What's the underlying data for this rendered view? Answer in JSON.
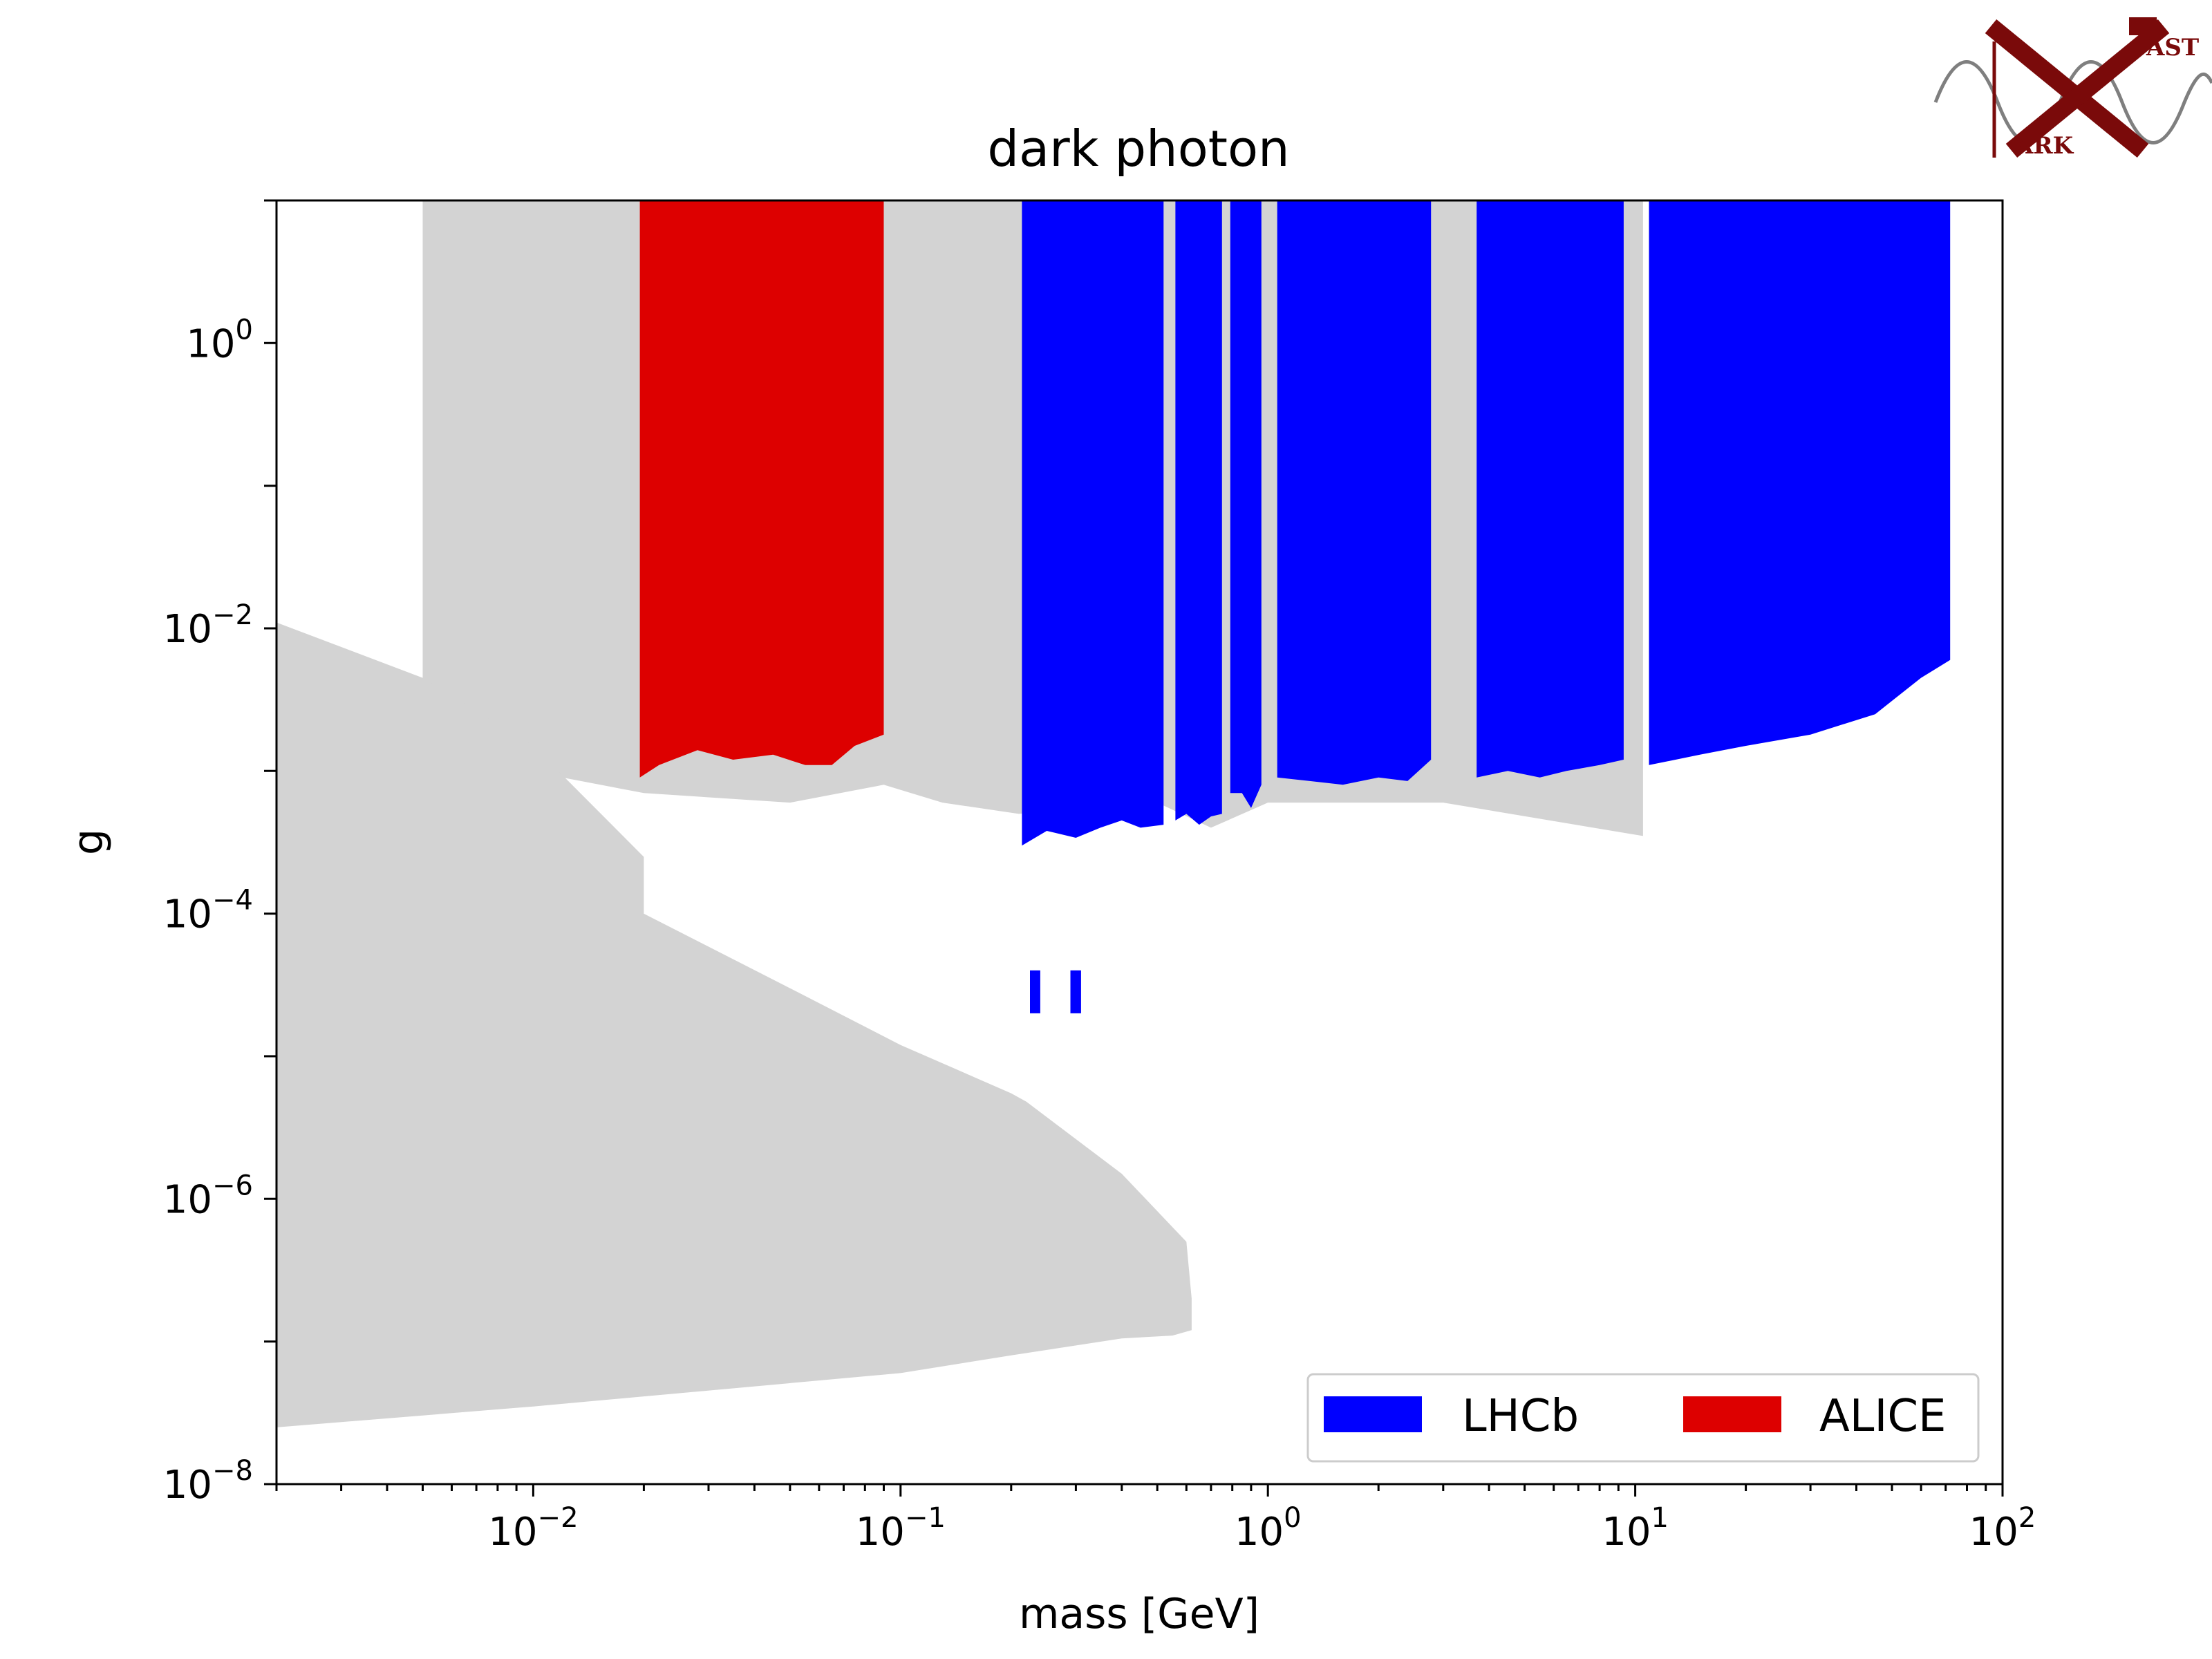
{
  "chart_data": {
    "type": "area",
    "title": "dark photon",
    "xlabel": "mass [GeV]",
    "ylabel": "g",
    "xscale": "log",
    "yscale": "log",
    "xlim": [
      0.002,
      100
    ],
    "ylim": [
      1e-08,
      10
    ],
    "grid": false,
    "legend_position": "bottom-right",
    "x_ticks": [
      {
        "value": 0.01,
        "base": "10",
        "exp": "−2"
      },
      {
        "value": 0.1,
        "base": "10",
        "exp": "−1"
      },
      {
        "value": 1,
        "base": "10",
        "exp": "0"
      },
      {
        "value": 10,
        "base": "10",
        "exp": "1"
      },
      {
        "value": 100,
        "base": "10",
        "exp": "2"
      }
    ],
    "y_ticks": [
      {
        "value": 1e-08,
        "base": "10",
        "exp": "−8"
      },
      {
        "value": 1e-06,
        "base": "10",
        "exp": "−6"
      },
      {
        "value": 0.0001,
        "base": "10",
        "exp": "−4"
      },
      {
        "value": 0.01,
        "base": "10",
        "exp": "−2"
      },
      {
        "value": 1,
        "base": "10",
        "exp": "0"
      }
    ],
    "existing_limits": {
      "color": "#d3d3d3",
      "upper_regions": [
        {
          "x": [
            0.005,
            0.0092,
            0.012,
            0.02,
            0.05,
            0.09,
            0.13,
            0.21,
            0.5,
            0.7,
            1.0,
            3,
            10.5
          ],
          "g_lower": [
            0.002,
            0.0012,
            0.0009,
            0.0007,
            0.0006,
            0.0008,
            0.0006,
            0.0005,
            0.0006,
            0.0004,
            0.0006,
            0.0006,
            0.00035
          ]
        }
      ],
      "lower_region": {
        "x": [
          0.002,
          0.005,
          0.01,
          0.02,
          0.02,
          0.05,
          0.1,
          0.2,
          0.22,
          0.4,
          0.6,
          0.62,
          0.62,
          0.55,
          0.4,
          0.2,
          0.1,
          0.01,
          0.002
        ],
        "g_upper": [
          0.011,
          0.0045,
          0.0015,
          0.00025,
          0.0001,
          3e-05,
          1.2e-05,
          5.5e-06,
          4.8e-06,
          1.5e-06,
          5e-07,
          2e-07,
          1.2e-07,
          1.1e-07,
          1.05e-07,
          8e-08,
          6e-08,
          3.5e-08,
          2.5e-08
        ]
      }
    },
    "series": [
      {
        "name": "LHCb",
        "color": "#0000ff",
        "bands": [
          {
            "x": [
              0.214,
              0.25,
              0.3,
              0.35,
              0.4,
              0.45,
              0.52
            ],
            "g_lower": [
              0.0003,
              0.00038,
              0.00034,
              0.0004,
              0.00045,
              0.0004,
              0.00042
            ]
          },
          {
            "x": [
              0.56,
              0.6,
              0.65,
              0.7,
              0.75
            ],
            "g_lower": [
              0.00045,
              0.0005,
              0.00042,
              0.00048,
              0.0005
            ]
          },
          {
            "x": [
              0.79,
              0.85,
              0.9,
              0.96
            ],
            "g_lower": [
              0.0007,
              0.0007,
              0.00055,
              0.0008
            ]
          },
          {
            "x": [
              1.06,
              1.3,
              1.6,
              2.0,
              2.4,
              2.78
            ],
            "g_lower": [
              0.0009,
              0.00085,
              0.0008,
              0.0009,
              0.00085,
              0.0012
            ]
          },
          {
            "x": [
              3.7,
              4.5,
              5.5,
              6.5,
              8.0,
              9.3
            ],
            "g_lower": [
              0.0009,
              0.001,
              0.0009,
              0.001,
              0.0011,
              0.0012
            ]
          },
          {
            "x": [
              10.9,
              15,
              20,
              30,
              45,
              60,
              72
            ],
            "g_lower": [
              0.0011,
              0.0013,
              0.0015,
              0.0018,
              0.0025,
              0.0045,
              0.006
            ]
          }
        ],
        "islands": [
          {
            "x": [
              0.225,
              0.24
            ],
            "g": [
              2e-05,
              4e-05
            ]
          },
          {
            "x": [
              0.29,
              0.31
            ],
            "g": [
              2e-05,
              4e-05
            ]
          }
        ]
      },
      {
        "name": "ALICE",
        "color": "#dd0000",
        "bands": [
          {
            "x": [
              0.0195,
              0.022,
              0.028,
              0.035,
              0.045,
              0.055,
              0.065,
              0.075,
              0.09
            ],
            "g_lower": [
              0.0009,
              0.0011,
              0.0014,
              0.0012,
              0.0013,
              0.0011,
              0.0011,
              0.0015,
              0.0018
            ]
          }
        ]
      }
    ],
    "legend": [
      {
        "label": "LHCb",
        "color": "#0000ff"
      },
      {
        "label": "ALICE",
        "color": "#dd0000"
      }
    ]
  },
  "logo": {
    "letters_top": "AST",
    "letters_bottom": "ARK",
    "color": "#7a0a0a"
  }
}
